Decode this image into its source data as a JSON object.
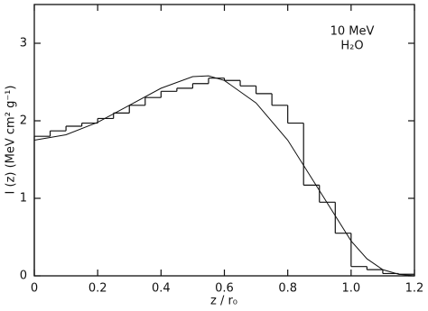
{
  "chart_data": {
    "type": "histogram",
    "ylabel": "I (z)  (MeV cm² g⁻¹)",
    "xlabel": "z / r₀",
    "annotations": [
      "10 MeV",
      "H₂O"
    ],
    "bins": [
      0,
      0.05,
      0.1,
      0.15,
      0.2,
      0.25,
      0.3,
      0.35,
      0.4,
      0.45,
      0.5,
      0.55,
      0.6,
      0.65,
      0.7,
      0.75,
      0.8,
      0.85,
      0.9,
      0.95,
      1.0,
      1.05,
      1.1,
      1.15,
      1.2
    ],
    "values": [
      1.8,
      1.87,
      1.93,
      1.97,
      2.03,
      2.1,
      2.2,
      2.3,
      2.38,
      2.42,
      2.48,
      2.55,
      2.52,
      2.45,
      2.35,
      2.2,
      1.97,
      1.17,
      0.95,
      0.55,
      0.12,
      0.08,
      0.03,
      0.02
    ],
    "color": "#111111",
    "curve": {
      "type": "line",
      "color": "#111111",
      "x": [
        0,
        0.1,
        0.2,
        0.3,
        0.4,
        0.5,
        0.55,
        0.6,
        0.7,
        0.8,
        0.9,
        1.0,
        1.05,
        1.1,
        1.15,
        1.2
      ],
      "values": [
        1.75,
        1.82,
        1.98,
        2.2,
        2.42,
        2.57,
        2.58,
        2.52,
        2.23,
        1.75,
        1.1,
        0.45,
        0.22,
        0.08,
        0.02,
        0
      ]
    },
    "xlim": [
      0,
      1.2
    ],
    "ylim": [
      0,
      3.5
    ],
    "xticks": [
      0,
      0.2,
      0.4,
      0.6,
      0.8,
      {
        "value": 1,
        "label": "1.0"
      },
      1.2
    ],
    "yticks": [
      0,
      1,
      2,
      3
    ]
  }
}
